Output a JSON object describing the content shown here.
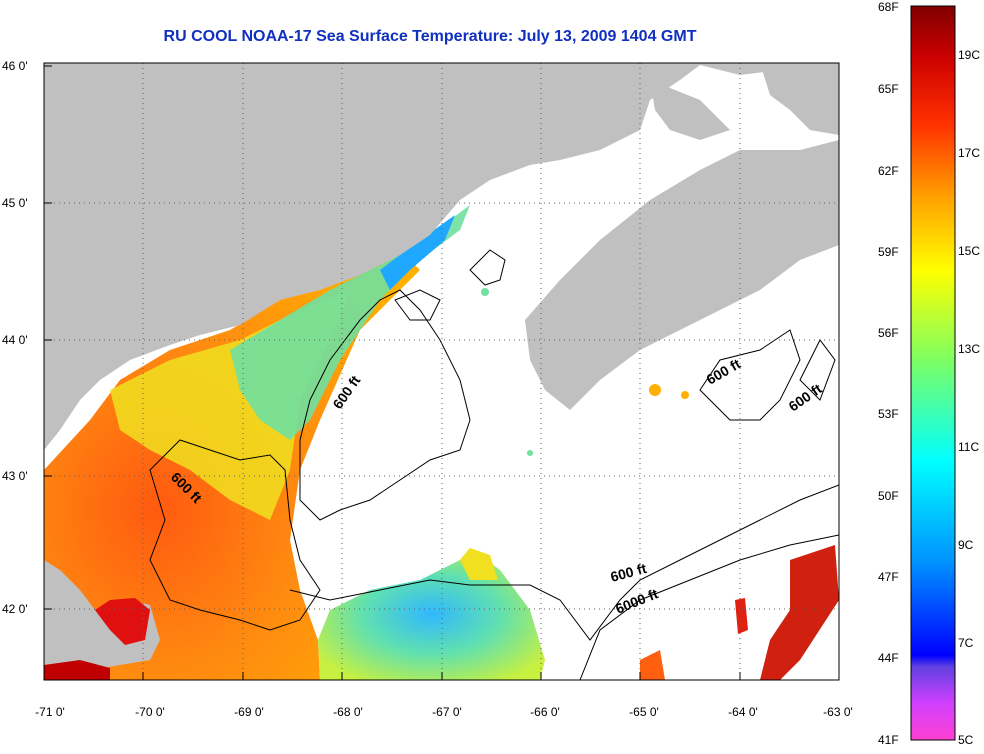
{
  "title": "RU COOL  NOAA-17  Sea Surface Temperature:  July 13, 2009 1404 GMT",
  "lon_ticks": [
    "-71 0'",
    "-70 0'",
    "-69 0'",
    "-68 0'",
    "-67 0'",
    "-66 0'",
    "-65 0'",
    "-64 0'",
    "-63 0'"
  ],
  "lat_ticks": [
    "46 0'",
    "45 0'",
    "44 0'",
    "43 0'",
    "42 0'"
  ],
  "contour_labels": [
    "600 ft",
    "600 ft",
    "600 ft",
    "600 ft",
    "600 ft",
    "6000 ft"
  ],
  "colorbar": {
    "fahrenheit": [
      "68F",
      "65F",
      "62F",
      "59F",
      "56F",
      "53F",
      "50F",
      "47F",
      "44F",
      "41F"
    ],
    "celsius": [
      "19C",
      "17C",
      "15C",
      "13C",
      "11C",
      "9C",
      "7C",
      "5C"
    ]
  },
  "colors": {
    "land": "#c0c0c0",
    "no_data": "#ffffff",
    "title": "#1030c0"
  }
}
